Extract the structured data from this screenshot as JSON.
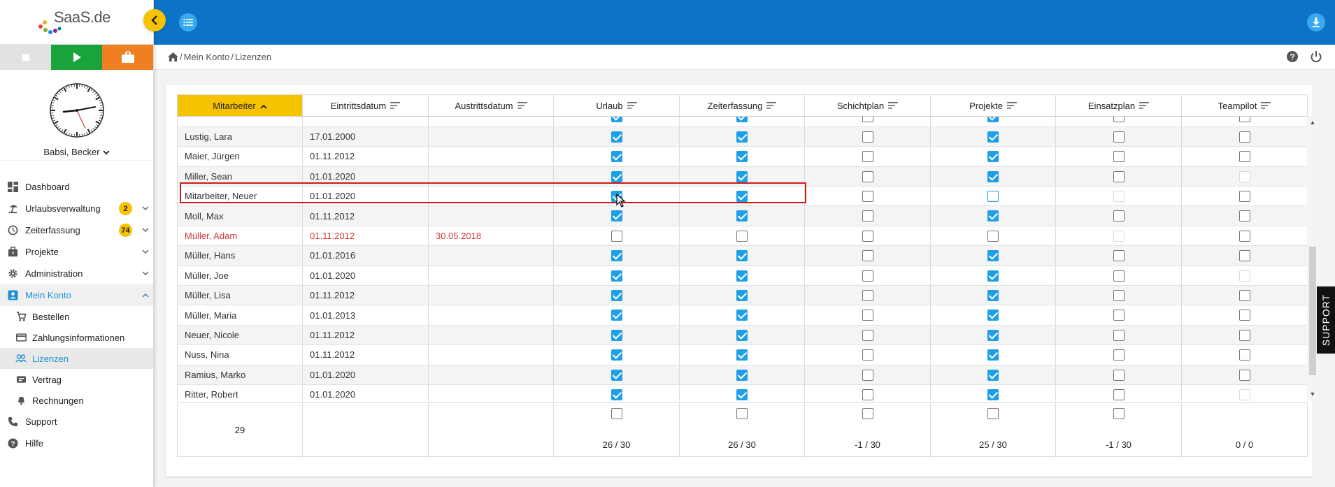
{
  "app": {
    "logo_text": "SaaS.de"
  },
  "user": {
    "name": "Babsi, Becker"
  },
  "sidebar": {
    "items": [
      {
        "name": "dashboard",
        "label": "Dashboard",
        "icon": "dashboard-icon"
      },
      {
        "name": "urlaubsverwaltung",
        "label": "Urlaubsverwaltung",
        "icon": "beach-icon",
        "badge": "2"
      },
      {
        "name": "zeiterfassung",
        "label": "Zeiterfassung",
        "icon": "clock-icon",
        "badge": "74"
      },
      {
        "name": "projekte",
        "label": "Projekte",
        "icon": "briefcase-icon"
      },
      {
        "name": "administration",
        "label": "Administration",
        "icon": "gear-icon"
      },
      {
        "name": "mein-konto",
        "label": "Mein Konto",
        "icon": "account-icon"
      }
    ],
    "sub_items": [
      {
        "label": "Bestellen",
        "icon": "cart-icon"
      },
      {
        "label": "Zahlungsinformationen",
        "icon": "credit-card-icon"
      },
      {
        "label": "Lizenzen",
        "icon": "people-icon"
      },
      {
        "label": "Vertrag",
        "icon": "contract-icon"
      },
      {
        "label": "Rechnungen",
        "icon": "bell-icon"
      }
    ],
    "bottom_items": [
      {
        "label": "Support",
        "icon": "phone-icon"
      },
      {
        "label": "Hilfe",
        "icon": "help-icon"
      }
    ]
  },
  "breadcrumb": {
    "sep": "/",
    "items": [
      "Mein Konto",
      "Lizenzen"
    ]
  },
  "table": {
    "columns": [
      "Mitarbeiter",
      "Eintrittsdatum",
      "Austrittsdatum",
      "Urlaub",
      "Zeiterfassung",
      "Schichtplan",
      "Projekte",
      "Einsatzplan",
      "Teampilot"
    ],
    "sorted_column": "Mitarbeiter",
    "rows": [
      {
        "name": "Lustig, Lara",
        "start": "17.01.2000",
        "end": "",
        "flags": [
          "on",
          "on",
          "off",
          "on",
          "off",
          "off"
        ]
      },
      {
        "name": "Maier, Jürgen",
        "start": "01.11.2012",
        "end": "",
        "flags": [
          "on",
          "on",
          "off",
          "on",
          "off",
          "off"
        ]
      },
      {
        "name": "Miller, Sean",
        "start": "01.01.2020",
        "end": "",
        "flags": [
          "on",
          "on",
          "off",
          "on",
          "off",
          "dis"
        ]
      },
      {
        "name": "Mitarbeiter, Neuer",
        "start": "01.01.2020",
        "end": "",
        "flags": [
          "on",
          "on",
          "off",
          "hl",
          "dis",
          "off"
        ]
      },
      {
        "name": "Moll, Max",
        "start": "01.11.2012",
        "end": "",
        "flags": [
          "on",
          "on",
          "off",
          "on",
          "off",
          "off"
        ]
      },
      {
        "name": "Müller, Adam",
        "start": "01.11.2012",
        "end": "30.05.2018",
        "terminated": true,
        "flags": [
          "off",
          "off",
          "off",
          "off",
          "dis",
          "off"
        ]
      },
      {
        "name": "Müller, Hans",
        "start": "01.01.2016",
        "end": "",
        "flags": [
          "on",
          "on",
          "off",
          "on",
          "off",
          "off"
        ]
      },
      {
        "name": "Müller, Joe",
        "start": "01.01.2020",
        "end": "",
        "flags": [
          "on",
          "on",
          "off",
          "on",
          "off",
          "dis"
        ]
      },
      {
        "name": "Müller, Lisa",
        "start": "01.11.2012",
        "end": "",
        "flags": [
          "on",
          "on",
          "off",
          "on",
          "off",
          "off"
        ]
      },
      {
        "name": "Müller, Maria",
        "start": "01.01.2013",
        "end": "",
        "flags": [
          "on",
          "on",
          "off",
          "on",
          "off",
          "off"
        ]
      },
      {
        "name": "Neuer, Nicole",
        "start": "01.11.2012",
        "end": "",
        "flags": [
          "on",
          "on",
          "off",
          "on",
          "off",
          "off"
        ]
      },
      {
        "name": "Nuss, Nina",
        "start": "01.11.2012",
        "end": "",
        "flags": [
          "on",
          "on",
          "off",
          "on",
          "off",
          "off"
        ]
      },
      {
        "name": "Ramius, Marko",
        "start": "01.01.2020",
        "end": "",
        "flags": [
          "on",
          "on",
          "off",
          "on",
          "off",
          "off"
        ]
      },
      {
        "name": "Ritter, Robert",
        "start": "01.01.2020",
        "end": "",
        "flags": [
          "on",
          "on",
          "off",
          "on",
          "off",
          "dis"
        ]
      }
    ],
    "selected_row": "Mitarbeiter, Neuer"
  },
  "footer": {
    "employee_count": "29",
    "totals": [
      "26 / 30",
      "26 / 30",
      "-1 / 30",
      "25 / 30",
      "-1 / 30",
      "0 / 0"
    ]
  },
  "support_tab": "SUPPORT",
  "colors": {
    "topbar": "#0d73c7",
    "accent_yellow": "#f5c300",
    "checkbox_blue": "#1e9fe6",
    "play_green": "#1aa33a",
    "work_orange": "#f07f21",
    "terminated_red": "#d43a3a"
  }
}
